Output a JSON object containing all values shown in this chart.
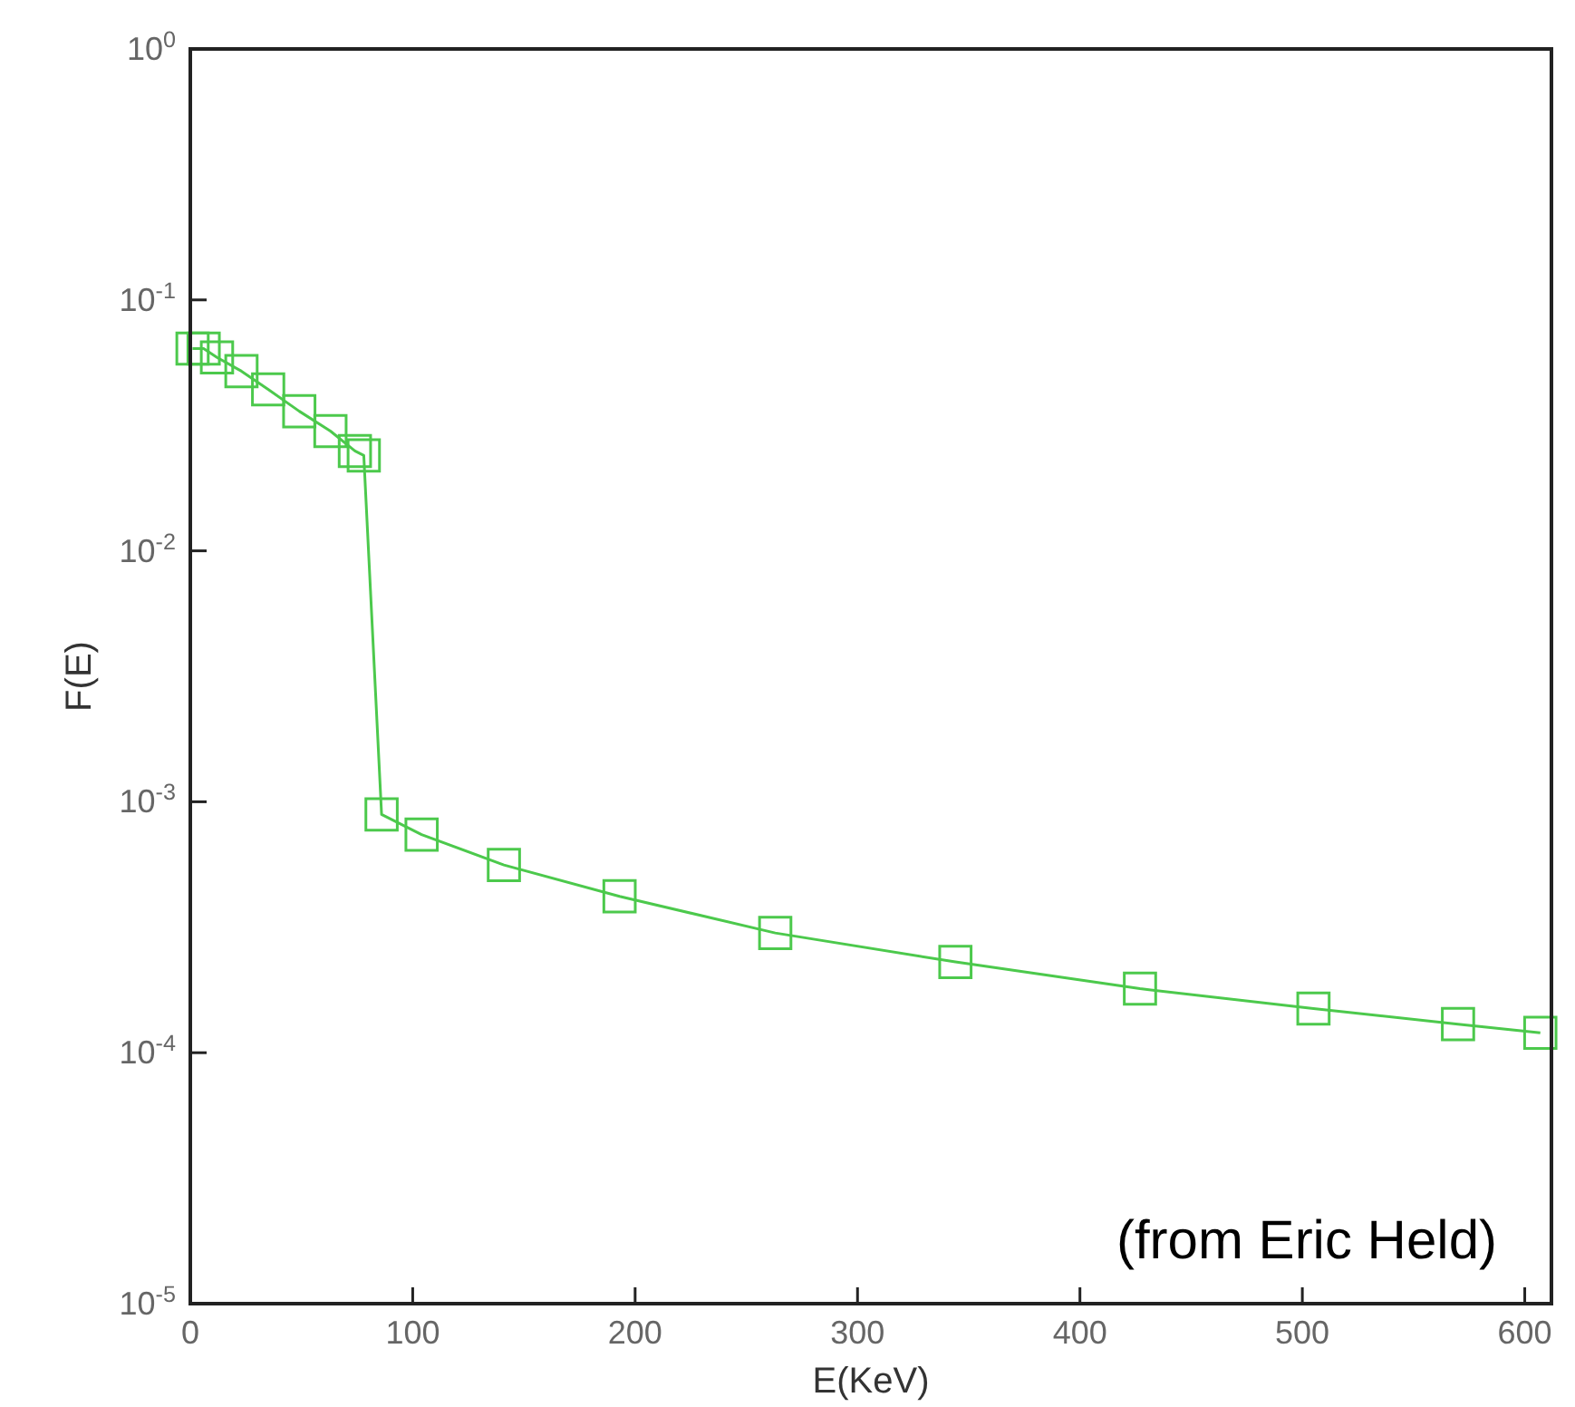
{
  "chart_data": {
    "type": "line",
    "xlabel": "E(KeV)",
    "ylabel": "F(E)",
    "log": "y",
    "marker": "square",
    "line_style": "solid",
    "grid": false,
    "x": [
      1,
      6,
      12,
      23,
      35,
      49,
      63,
      74,
      78,
      86,
      104,
      141,
      193,
      263,
      344,
      427,
      505,
      570,
      607
    ],
    "series": [
      {
        "color": "#4cc94c",
        "values": [
          0.064,
          0.064,
          0.059,
          0.052,
          0.044,
          0.036,
          0.03,
          0.025,
          0.024,
          0.00089,
          0.00074,
          0.00056,
          0.00042,
          0.0003,
          0.00023,
          0.00018,
          0.00015,
          0.00013,
          0.00012
        ]
      }
    ],
    "xlim": [
      0,
      612
    ],
    "xticks": [
      0,
      100,
      200,
      300,
      400,
      500,
      600
    ],
    "ylim": [
      1e-05,
      1
    ],
    "yticks": [
      {
        "value": 1e-05,
        "label": "10$^{-5}$"
      },
      {
        "value": 0.0001,
        "label": "10$^{-4}$"
      },
      {
        "value": 0.001,
        "label": "10$^{-3}$"
      },
      {
        "value": 0.01,
        "label": "10$^{-2}$"
      },
      {
        "value": 0.1,
        "label": "10$^{-1}$"
      },
      {
        "value": 1,
        "label": "10$^{0}$"
      }
    ],
    "annotations": [
      "(from Eric Held)"
    ]
  }
}
